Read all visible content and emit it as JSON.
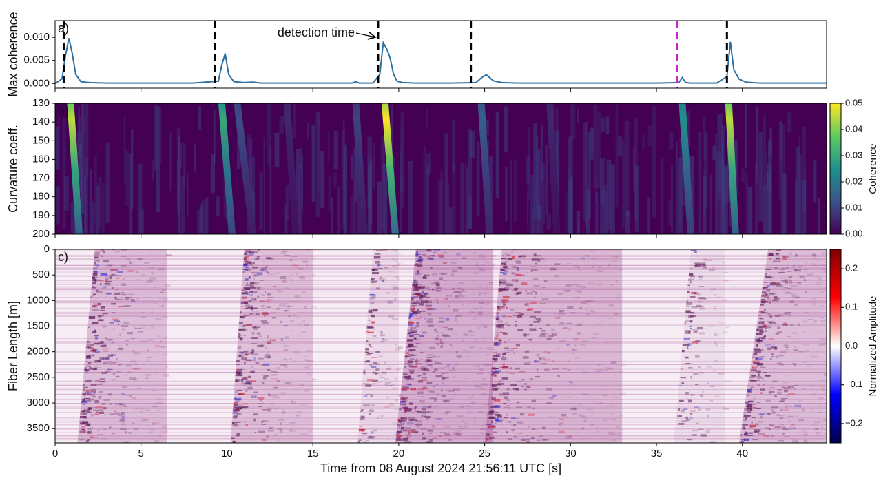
{
  "chart_data": [
    {
      "type": "line",
      "panel_label": "a)",
      "ylabel": "Max coherence",
      "xlim": [
        0,
        44.9
      ],
      "ylim": [
        -0.001,
        0.0136
      ],
      "yticks": [
        {
          "value": 0,
          "label": "0.000"
        },
        {
          "value": 0.005,
          "label": "0.005"
        },
        {
          "value": 0.01,
          "label": "0.010"
        }
      ],
      "series": [
        {
          "color": "#2f6f9f",
          "x": [
            0,
            0.4,
            0.6,
            0.8,
            1.0,
            1.2,
            1.5,
            2,
            3,
            5,
            8,
            9.5,
            9.7,
            9.9,
            10.1,
            10.4,
            11,
            11.5,
            12,
            15,
            17.3,
            17.5,
            17.7,
            18.5,
            18.9,
            19.1,
            19.3,
            19.5,
            19.7,
            19.9,
            20.2,
            21,
            23,
            24.5,
            24.8,
            25.1,
            25.5,
            26,
            27,
            30,
            35,
            36.3,
            36.5,
            36.7,
            37,
            38.5,
            39.1,
            39.3,
            39.5,
            39.8,
            40.2,
            41,
            44.9
          ],
          "values": [
            0,
            0.001,
            0.006,
            0.0098,
            0.0065,
            0.002,
            0.0004,
            0.0002,
            0.0001,
            0.0001,
            0.0001,
            0.0005,
            0.004,
            0.0065,
            0.002,
            0.0004,
            0.0002,
            0.0003,
            0.0001,
            0.0001,
            0.0001,
            0.0004,
            0.0001,
            0.0001,
            0.002,
            0.0088,
            0.0075,
            0.0055,
            0.002,
            0.0005,
            0.0002,
            0.0001,
            0.0001,
            0.0002,
            0.0012,
            0.0019,
            0.0006,
            0.0002,
            0.0001,
            0.0001,
            0.0001,
            0.0002,
            0.0013,
            0.0002,
            0.0001,
            0.0001,
            0.0015,
            0.009,
            0.003,
            0.001,
            0.0003,
            0.0001,
            0.0001
          ]
        }
      ],
      "detections": {
        "x": [
          0.5,
          9.3,
          18.8,
          24.2,
          36.2,
          39.1
        ],
        "colors": [
          "#000000",
          "#000000",
          "#000000",
          "#000000",
          "#cc22cc",
          "#000000"
        ]
      },
      "annotation": "detection time"
    },
    {
      "type": "heatmap",
      "panel_label": "b)",
      "ylabel": "Curvature coeff.",
      "colorbar_label": "Coherence",
      "xlim": [
        0,
        44.9
      ],
      "ylim": [
        130,
        200
      ],
      "y_inverted": true,
      "yticks": [
        130,
        140,
        150,
        160,
        170,
        180,
        190,
        200
      ],
      "clim": [
        0,
        0.05
      ],
      "cticks": [
        {
          "value": 0,
          "label": "0.00"
        },
        {
          "value": 0.01,
          "label": "0.01"
        },
        {
          "value": 0.02,
          "label": "0.02"
        },
        {
          "value": 0.03,
          "label": "0.03"
        },
        {
          "value": 0.04,
          "label": "0.04"
        },
        {
          "value": 0.05,
          "label": "0.05"
        }
      ],
      "streaks": {
        "x_top": [
          0.9,
          9.7,
          10.6,
          19.2,
          17.5,
          24.8,
          36.5,
          39.2,
          13.5,
          28.8
        ],
        "x_bottom": [
          1.4,
          10.3,
          11.5,
          19.8,
          18.0,
          25.3,
          37.0,
          39.6,
          14.0,
          29.2
        ],
        "coherence": [
          0.045,
          0.03,
          0.012,
          0.05,
          0.01,
          0.015,
          0.025,
          0.045,
          0.006,
          0.006
        ]
      }
    },
    {
      "type": "image",
      "panel_label": "c)",
      "ylabel": "Fiber Length [m]",
      "colorbar_label": "Normalized Amplitude",
      "xlabel": "Time from 08 August 2024 21:56:11 UTC [s]",
      "xlim": [
        0,
        44.9
      ],
      "xticks": [
        0,
        5,
        10,
        15,
        20,
        25,
        30,
        35,
        40
      ],
      "ylim": [
        0,
        3780
      ],
      "y_inverted": true,
      "yticks": [
        0,
        500,
        1000,
        1500,
        2000,
        2500,
        3000,
        3500
      ],
      "clim": [
        -0.25,
        0.25
      ],
      "cticks": [
        {
          "value": -0.2,
          "label": "−0.2"
        },
        {
          "value": -0.1,
          "label": "−0.1"
        },
        {
          "value": 0,
          "label": "0.0"
        },
        {
          "value": 0.1,
          "label": "0.1"
        },
        {
          "value": 0.2,
          "label": "0.2"
        }
      ],
      "wavefronts": {
        "onset_top": [
          2.3,
          11.0,
          18.5,
          21.0,
          26.0,
          37.0,
          41.5
        ],
        "onset_bottom": [
          1.3,
          10.2,
          17.6,
          19.8,
          25.0,
          36.0,
          39.8
        ],
        "end": [
          6.5,
          15.0,
          20.0,
          25.5,
          33.0,
          39.0,
          44.9
        ],
        "amplitude": [
          0.15,
          0.14,
          0.06,
          0.2,
          0.17,
          0.05,
          0.15
        ]
      }
    }
  ]
}
